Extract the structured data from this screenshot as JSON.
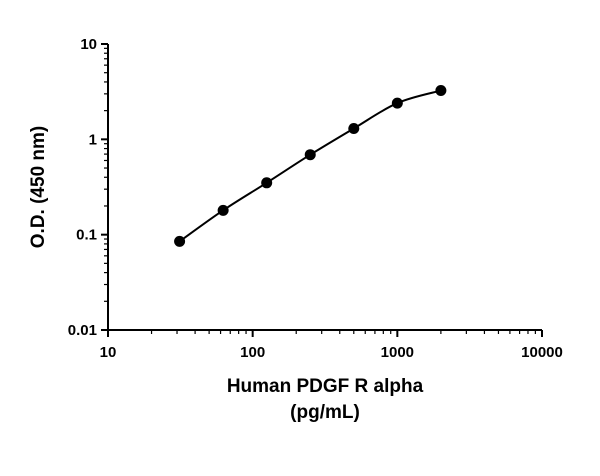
{
  "chart_data": {
    "type": "scatter",
    "xlabel_lines": [
      "Human PDGF R alpha",
      "(pg/mL)"
    ],
    "ylabel": "O.D. (450 nm)",
    "xscale": "log",
    "yscale": "log",
    "xlim": [
      10,
      10000
    ],
    "ylim": [
      0.01,
      10
    ],
    "x_ticks": [
      10,
      100,
      1000,
      10000
    ],
    "x_tick_labels": [
      "10",
      "100",
      "1000",
      "10000"
    ],
    "y_ticks": [
      0.01,
      0.1,
      1,
      10
    ],
    "y_tick_labels": [
      "0.01",
      "0.1",
      "1",
      "10"
    ],
    "grid": false,
    "series": [
      {
        "x": [
          31.25,
          62.5,
          125,
          250,
          500,
          1000,
          2000
        ],
        "y": [
          0.085,
          0.18,
          0.35,
          0.69,
          1.3,
          2.4,
          3.25
        ],
        "fit_curve": true
      }
    ],
    "colors": {
      "points": "#000000",
      "curve": "#000000",
      "axes": "#000000"
    }
  }
}
